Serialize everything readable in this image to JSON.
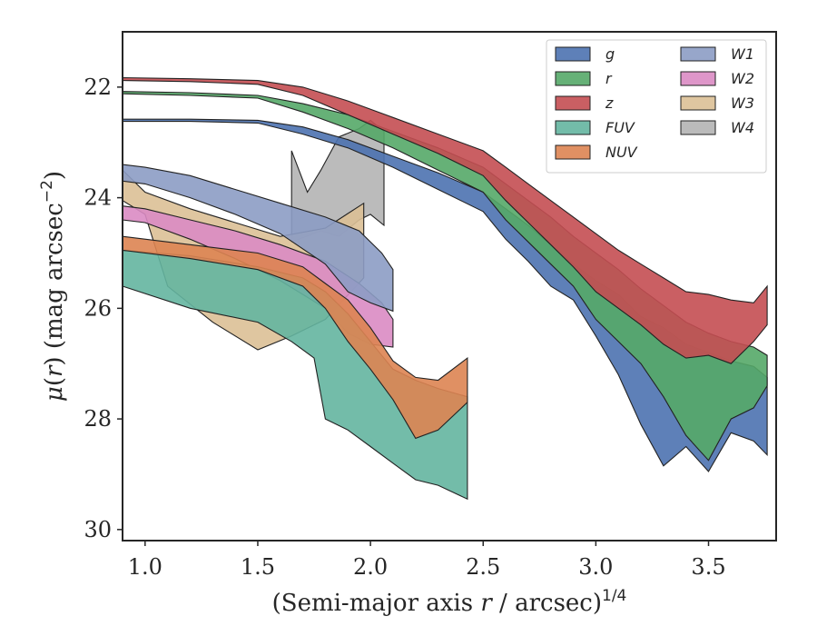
{
  "chart_data": {
    "type": "area",
    "xlabel": "(Semi-major axis r / arcsec)",
    "xlabel_parts": {
      "prefix": "(Semi-major axis ",
      "var": "r",
      "suffix": " / arcsec)",
      "sup": "1/4"
    },
    "ylabel_parts": {
      "mu": "μ",
      "open": "(",
      "var": "r",
      "close": ") (mag arcsec",
      "sup": "−2",
      "end": ")"
    },
    "xlim": [
      0.9,
      3.8
    ],
    "ylim": [
      30.2,
      21.0
    ],
    "y_inverted": true,
    "xticks": [
      1.0,
      1.5,
      2.0,
      2.5,
      3.0,
      3.5
    ],
    "xtick_labels": [
      "1.0",
      "1.5",
      "2.0",
      "2.5",
      "3.0",
      "3.5"
    ],
    "yticks": [
      22,
      24,
      26,
      28,
      30
    ],
    "ytick_labels": [
      "22",
      "24",
      "26",
      "28",
      "30"
    ],
    "grid": false,
    "legend_position": "top-right",
    "legend_columns": 2,
    "series": [
      {
        "name": "g",
        "color": "#4c72b0",
        "upper": [
          [
            0.9,
            22.58
          ],
          [
            1.2,
            22.58
          ],
          [
            1.5,
            22.6
          ],
          [
            1.7,
            22.72
          ],
          [
            1.9,
            22.95
          ],
          [
            2.1,
            23.25
          ],
          [
            2.3,
            23.55
          ],
          [
            2.5,
            23.9
          ],
          [
            2.6,
            24.2
          ],
          [
            2.7,
            24.5
          ],
          [
            2.8,
            24.85
          ],
          [
            2.9,
            25.2
          ],
          [
            3.0,
            25.5
          ],
          [
            3.1,
            25.75
          ],
          [
            3.2,
            26.15
          ],
          [
            3.3,
            26.35
          ],
          [
            3.4,
            26.65
          ],
          [
            3.5,
            26.8
          ],
          [
            3.6,
            26.95
          ],
          [
            3.7,
            27.05
          ],
          [
            3.76,
            27.25
          ]
        ],
        "lower": [
          [
            0.9,
            22.62
          ],
          [
            1.2,
            22.62
          ],
          [
            1.5,
            22.65
          ],
          [
            1.7,
            22.85
          ],
          [
            1.9,
            23.1
          ],
          [
            2.1,
            23.45
          ],
          [
            2.3,
            23.85
          ],
          [
            2.5,
            24.25
          ],
          [
            2.6,
            24.75
          ],
          [
            2.7,
            25.15
          ],
          [
            2.8,
            25.6
          ],
          [
            2.9,
            25.85
          ],
          [
            3.0,
            26.5
          ],
          [
            3.1,
            27.2
          ],
          [
            3.2,
            28.1
          ],
          [
            3.3,
            28.85
          ],
          [
            3.4,
            28.5
          ],
          [
            3.5,
            28.95
          ],
          [
            3.6,
            28.25
          ],
          [
            3.7,
            28.4
          ],
          [
            3.76,
            28.65
          ]
        ]
      },
      {
        "name": "r",
        "color": "#55a868",
        "upper": [
          [
            0.9,
            22.08
          ],
          [
            1.2,
            22.1
          ],
          [
            1.5,
            22.15
          ],
          [
            1.7,
            22.3
          ],
          [
            1.9,
            22.5
          ],
          [
            2.1,
            22.8
          ],
          [
            2.3,
            23.1
          ],
          [
            2.5,
            23.45
          ],
          [
            2.6,
            23.75
          ],
          [
            2.7,
            24.05
          ],
          [
            2.8,
            24.35
          ],
          [
            2.9,
            24.7
          ],
          [
            3.0,
            25.0
          ],
          [
            3.1,
            25.3
          ],
          [
            3.2,
            25.65
          ],
          [
            3.3,
            25.95
          ],
          [
            3.4,
            26.25
          ],
          [
            3.5,
            26.45
          ],
          [
            3.6,
            26.6
          ],
          [
            3.7,
            26.7
          ],
          [
            3.76,
            26.85
          ]
        ],
        "lower": [
          [
            0.9,
            22.12
          ],
          [
            1.2,
            22.15
          ],
          [
            1.5,
            22.2
          ],
          [
            1.7,
            22.45
          ],
          [
            1.9,
            22.75
          ],
          [
            2.1,
            23.1
          ],
          [
            2.3,
            23.5
          ],
          [
            2.5,
            23.9
          ],
          [
            2.6,
            24.4
          ],
          [
            2.7,
            24.8
          ],
          [
            2.8,
            25.2
          ],
          [
            2.9,
            25.6
          ],
          [
            3.0,
            26.2
          ],
          [
            3.1,
            26.6
          ],
          [
            3.2,
            27.0
          ],
          [
            3.3,
            27.6
          ],
          [
            3.4,
            28.3
          ],
          [
            3.5,
            28.75
          ],
          [
            3.6,
            28.0
          ],
          [
            3.7,
            27.8
          ],
          [
            3.76,
            27.4
          ]
        ]
      },
      {
        "name": "z",
        "color": "#c44e52",
        "upper": [
          [
            0.9,
            21.83
          ],
          [
            1.2,
            21.85
          ],
          [
            1.5,
            21.88
          ],
          [
            1.7,
            22.0
          ],
          [
            1.9,
            22.25
          ],
          [
            2.1,
            22.55
          ],
          [
            2.3,
            22.85
          ],
          [
            2.5,
            23.15
          ],
          [
            2.6,
            23.45
          ],
          [
            2.7,
            23.75
          ],
          [
            2.8,
            24.05
          ],
          [
            2.9,
            24.35
          ],
          [
            3.0,
            24.65
          ],
          [
            3.1,
            24.95
          ],
          [
            3.2,
            25.2
          ],
          [
            3.3,
            25.45
          ],
          [
            3.4,
            25.7
          ],
          [
            3.5,
            25.75
          ],
          [
            3.6,
            25.85
          ],
          [
            3.7,
            25.9
          ],
          [
            3.76,
            25.6
          ]
        ],
        "lower": [
          [
            0.9,
            21.88
          ],
          [
            1.2,
            21.9
          ],
          [
            1.5,
            21.95
          ],
          [
            1.7,
            22.15
          ],
          [
            1.9,
            22.5
          ],
          [
            2.1,
            22.85
          ],
          [
            2.3,
            23.2
          ],
          [
            2.5,
            23.6
          ],
          [
            2.6,
            24.05
          ],
          [
            2.7,
            24.45
          ],
          [
            2.8,
            24.85
          ],
          [
            2.9,
            25.25
          ],
          [
            3.0,
            25.7
          ],
          [
            3.1,
            26.0
          ],
          [
            3.2,
            26.3
          ],
          [
            3.3,
            26.65
          ],
          [
            3.4,
            26.9
          ],
          [
            3.5,
            26.85
          ],
          [
            3.6,
            27.0
          ],
          [
            3.7,
            26.6
          ],
          [
            3.76,
            26.3
          ]
        ]
      },
      {
        "name": "FUV",
        "color": "#64b5a0",
        "upper": [
          [
            0.9,
            24.95
          ],
          [
            1.2,
            25.05
          ],
          [
            1.5,
            25.25
          ],
          [
            1.7,
            25.45
          ],
          [
            1.8,
            25.7
          ],
          [
            1.9,
            26.1
          ],
          [
            2.0,
            26.6
          ],
          [
            2.1,
            27.1
          ],
          [
            2.2,
            27.3
          ],
          [
            2.3,
            27.45
          ],
          [
            2.43,
            27.6
          ]
        ],
        "lower": [
          [
            0.9,
            25.6
          ],
          [
            1.2,
            26.0
          ],
          [
            1.5,
            26.25
          ],
          [
            1.65,
            26.6
          ],
          [
            1.75,
            26.9
          ],
          [
            1.8,
            28.0
          ],
          [
            1.9,
            28.2
          ],
          [
            2.0,
            28.5
          ],
          [
            2.1,
            28.8
          ],
          [
            2.2,
            29.1
          ],
          [
            2.3,
            29.2
          ],
          [
            2.43,
            29.45
          ]
        ]
      },
      {
        "name": "NUV",
        "color": "#dd8452",
        "upper": [
          [
            0.9,
            24.7
          ],
          [
            1.2,
            24.85
          ],
          [
            1.5,
            25.0
          ],
          [
            1.7,
            25.25
          ],
          [
            1.8,
            25.55
          ],
          [
            1.9,
            25.85
          ],
          [
            2.0,
            26.35
          ],
          [
            2.1,
            26.95
          ],
          [
            2.2,
            27.25
          ],
          [
            2.3,
            27.3
          ],
          [
            2.43,
            26.9
          ]
        ],
        "lower": [
          [
            0.9,
            24.95
          ],
          [
            1.2,
            25.1
          ],
          [
            1.5,
            25.3
          ],
          [
            1.7,
            25.6
          ],
          [
            1.8,
            26.0
          ],
          [
            1.9,
            26.6
          ],
          [
            2.0,
            27.1
          ],
          [
            2.1,
            27.65
          ],
          [
            2.2,
            28.35
          ],
          [
            2.3,
            28.2
          ],
          [
            2.43,
            27.7
          ]
        ]
      },
      {
        "name": "W1",
        "color": "#8c9cc4",
        "upper": [
          [
            0.9,
            23.4
          ],
          [
            1.0,
            23.45
          ],
          [
            1.2,
            23.6
          ],
          [
            1.4,
            23.85
          ],
          [
            1.6,
            24.1
          ],
          [
            1.8,
            24.35
          ],
          [
            1.95,
            24.6
          ],
          [
            2.05,
            25.0
          ],
          [
            2.1,
            25.3
          ]
        ],
        "lower": [
          [
            0.9,
            23.7
          ],
          [
            1.0,
            23.75
          ],
          [
            1.2,
            24.0
          ],
          [
            1.4,
            24.3
          ],
          [
            1.6,
            24.65
          ],
          [
            1.8,
            25.2
          ],
          [
            1.9,
            25.7
          ],
          [
            2.0,
            25.9
          ],
          [
            2.1,
            26.05
          ]
        ]
      },
      {
        "name": "W2",
        "color": "#da8bc3",
        "upper": [
          [
            0.9,
            24.15
          ],
          [
            1.0,
            24.2
          ],
          [
            1.2,
            24.4
          ],
          [
            1.4,
            24.6
          ],
          [
            1.6,
            24.85
          ],
          [
            1.8,
            25.15
          ],
          [
            1.95,
            25.55
          ],
          [
            2.05,
            25.9
          ],
          [
            2.1,
            26.2
          ]
        ],
        "lower": [
          [
            0.9,
            24.4
          ],
          [
            1.0,
            24.45
          ],
          [
            1.2,
            24.75
          ],
          [
            1.4,
            25.1
          ],
          [
            1.6,
            25.5
          ],
          [
            1.8,
            26.0
          ],
          [
            1.9,
            26.45
          ],
          [
            2.0,
            26.65
          ],
          [
            2.1,
            26.7
          ]
        ]
      },
      {
        "name": "W3",
        "color": "#dcc096",
        "upper": [
          [
            0.9,
            23.5
          ],
          [
            1.0,
            23.9
          ],
          [
            1.2,
            24.2
          ],
          [
            1.4,
            24.45
          ],
          [
            1.6,
            24.7
          ],
          [
            1.8,
            24.55
          ],
          [
            1.97,
            24.1
          ]
        ],
        "lower": [
          [
            0.9,
            24.05
          ],
          [
            1.0,
            24.3
          ],
          [
            1.1,
            25.6
          ],
          [
            1.3,
            26.25
          ],
          [
            1.5,
            26.75
          ],
          [
            1.65,
            26.5
          ],
          [
            1.8,
            26.2
          ],
          [
            1.97,
            25.45
          ]
        ]
      },
      {
        "name": "W4",
        "color": "#b4b4b4",
        "upper": [
          [
            1.65,
            23.15
          ],
          [
            1.72,
            23.9
          ],
          [
            1.78,
            23.5
          ],
          [
            1.86,
            22.9
          ],
          [
            1.95,
            22.75
          ],
          [
            2.0,
            22.6
          ],
          [
            2.06,
            22.8
          ]
        ],
        "lower": [
          [
            1.65,
            24.8
          ],
          [
            1.78,
            24.6
          ],
          [
            1.86,
            24.7
          ],
          [
            1.95,
            24.4
          ],
          [
            2.0,
            24.3
          ],
          [
            2.06,
            24.5
          ]
        ]
      }
    ]
  }
}
